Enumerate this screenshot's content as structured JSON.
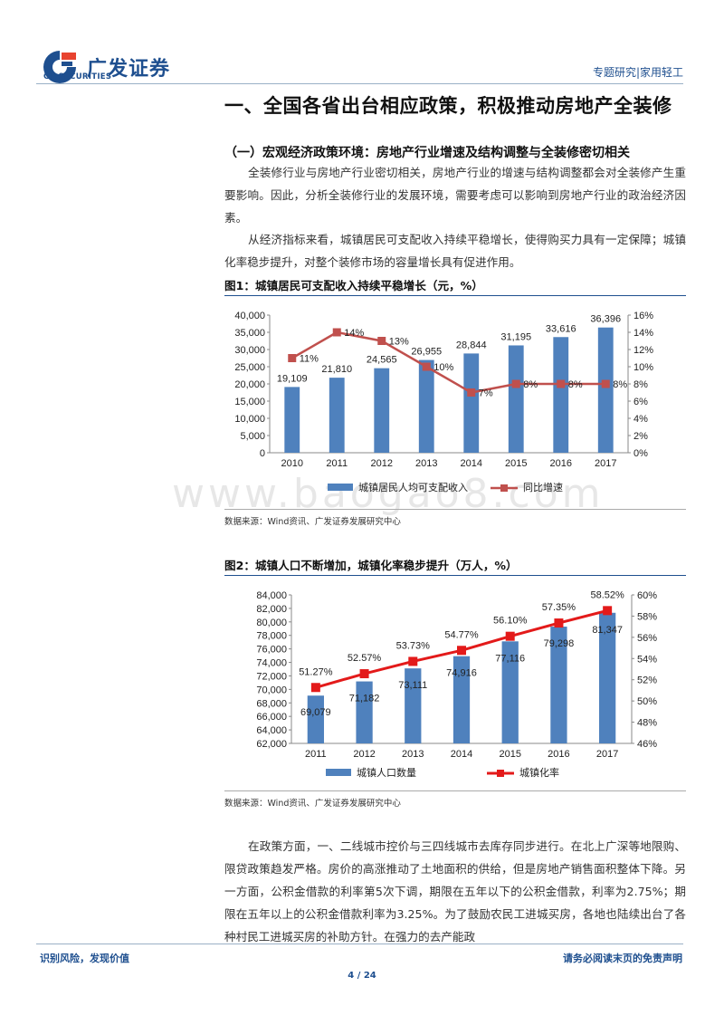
{
  "header": {
    "logo_text": "广发证券",
    "logo_sub": "GF SECURITIES",
    "right_text": "专题研究|家用轻工"
  },
  "section_title": "一、全国各省出台相应政策，积极推动房地产全装修",
  "subsection_title": "（一）宏观经济政策环境：房地产行业增速及结构调整与全装修密切相关",
  "paragraphs": {
    "p1": "全装修行业与房地产行业密切相关，房地产行业的增速与结构调整都会对全装修产生重要影响。因此，分析全装修行业的发展环境，需要考虑可以影响到房地产行业的政治经济因素。",
    "p2": "从经济指标来看，城镇居民可支配收入持续平稳增长，使得购买力具有一定保障；城镇化率稳步提升，对整个装修市场的容量增长具有促进作用。",
    "p3": "在政策方面，一、二线城市控价与三四线城市去库存同步进行。在北上广深等地限购、限贷政策趋发严格。房价的高涨推动了土地面积的供给，但是房地产销售面积整体下降。另一方面，公积金借款的利率第5次下调，期限在五年以下的公积金借款，利率为2.75%；期限在五年以上的公积金借款利率为3.25%。为了鼓励农民工进城买房，各地也陆续出台了各种村民工进城买房的补助方针。在强力的去产能政"
  },
  "figures": {
    "fig1_title": "图1：城镇居民可支配收入持续平稳增长（元，%）",
    "fig1_source": "数据来源：Wind资讯、广发证券发展研究中心",
    "fig2_title": "图2：城镇人口不断增加，城镇化率稳步提升（万人，%）",
    "fig2_source": "数据来源：Wind资讯、广发证券发展研究中心"
  },
  "watermark": "www.baogao8.com",
  "footer": {
    "left": "识别风险，发现价值",
    "right": "请务必阅读末页的免责声明",
    "page": "4 / 24"
  },
  "colors": {
    "brand": "#1e4f8f",
    "bar": "#4f81bd",
    "line1": "#c0504d",
    "line2": "#e31a1a"
  },
  "chart_data": [
    {
      "type": "bar",
      "categories": [
        "2010",
        "2011",
        "2012",
        "2013",
        "2014",
        "2015",
        "2016",
        "2017"
      ],
      "series": [
        {
          "name": "城镇居民人均可支配收入",
          "type": "bar",
          "axis": "left",
          "values": [
            19109,
            21810,
            24565,
            26955,
            28844,
            31195,
            33616,
            36396
          ],
          "labels": [
            "19,109",
            "21,810",
            "24,565",
            "26,955",
            "28,844",
            "31,195",
            "33,616",
            "36,396"
          ]
        },
        {
          "name": "同比增速",
          "type": "line",
          "axis": "right",
          "values": [
            11,
            14,
            13,
            10,
            7,
            8,
            8,
            8
          ],
          "labels": [
            "11%",
            "14%",
            "13%",
            "10%",
            "7%",
            "8%",
            "8%",
            "8%"
          ]
        }
      ],
      "ylim": [
        0,
        40000
      ],
      "yticks": [
        "0",
        "5,000",
        "10,000",
        "15,000",
        "20,000",
        "25,000",
        "30,000",
        "35,000",
        "40,000"
      ],
      "y2lim": [
        0,
        16
      ],
      "y2ticks": [
        "0%",
        "2%",
        "4%",
        "6%",
        "8%",
        "10%",
        "12%",
        "14%",
        "16%"
      ],
      "legend": "bottom"
    },
    {
      "type": "bar",
      "categories": [
        "2011",
        "2012",
        "2013",
        "2014",
        "2015",
        "2016",
        "2017"
      ],
      "series": [
        {
          "name": "城镇人口数量",
          "type": "bar",
          "axis": "left",
          "values": [
            69079,
            71182,
            73111,
            74916,
            77116,
            79298,
            81347
          ],
          "labels": [
            "69,079",
            "71,182",
            "73,111",
            "74,916",
            "77,116",
            "79,298",
            "81,347"
          ]
        },
        {
          "name": "城镇化率",
          "type": "line",
          "axis": "right",
          "values": [
            51.27,
            52.57,
            53.73,
            54.77,
            56.1,
            57.35,
            58.52
          ],
          "labels": [
            "51.27%",
            "52.57%",
            "53.73%",
            "54.77%",
            "56.10%",
            "57.35%",
            "58.52%"
          ]
        }
      ],
      "ylim": [
        62000,
        84000
      ],
      "yticks": [
        "62,000",
        "64,000",
        "66,000",
        "68,000",
        "70,000",
        "72,000",
        "74,000",
        "76,000",
        "78,000",
        "80,000",
        "82,000",
        "84,000"
      ],
      "y2lim": [
        46,
        60
      ],
      "y2ticks": [
        "46%",
        "48%",
        "50%",
        "52%",
        "54%",
        "56%",
        "58%",
        "60%"
      ],
      "legend": "bottom"
    }
  ]
}
